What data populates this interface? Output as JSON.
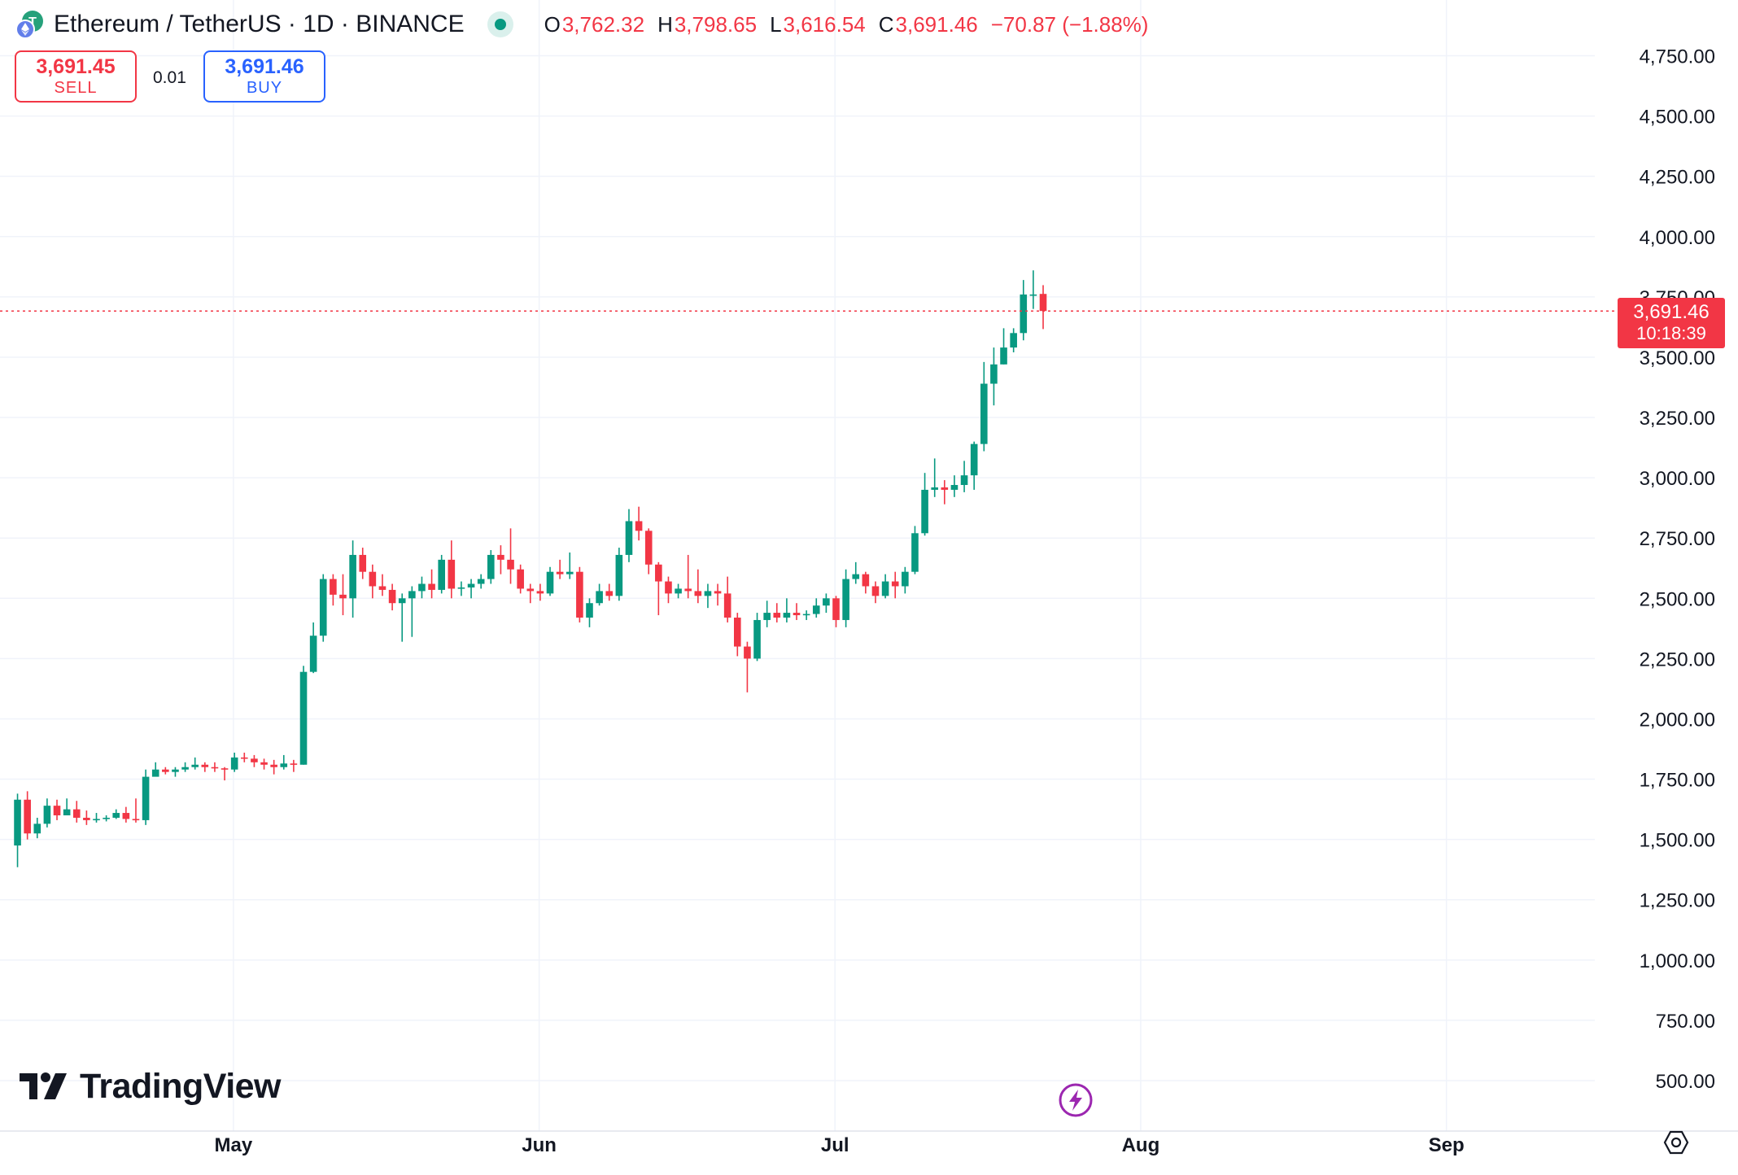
{
  "header": {
    "title": "Ethereum / TetherUS · 1D · BINANCE",
    "ohlc": {
      "o_label": "O",
      "o": "3,762.32",
      "h_label": "H",
      "h": "3,798.65",
      "l_label": "L",
      "l": "3,616.54",
      "c_label": "C",
      "c": "3,691.46",
      "change": "−70.87 (−1.88%)"
    }
  },
  "trade": {
    "sell_price": "3,691.45",
    "sell_label": "SELL",
    "spread": "0.01",
    "buy_price": "3,691.46",
    "buy_label": "BUY"
  },
  "last_price": {
    "price": "3,691.46",
    "countdown": "10:18:39"
  },
  "watermark": "TradingView",
  "colors": {
    "up": "#089981",
    "down": "#f23645",
    "grid": "#f0f3fa",
    "text": "#131722",
    "sell": "#f23645",
    "buy": "#2962ff"
  },
  "icons": {
    "logo": "eth-usdt-logo-icon",
    "live": "live-dot-icon",
    "flash": "lightning-icon",
    "settings": "settings-hex-icon"
  },
  "chart_data": {
    "type": "candlestick",
    "interval": "1D",
    "x_ticks": [
      "May",
      "Jun",
      "Jul",
      "Aug",
      "Sep"
    ],
    "y_ticks": [
      "500.00",
      "750.00",
      "1,000.00",
      "1,250.00",
      "1,500.00",
      "1,750.00",
      "2,000.00",
      "2,250.00",
      "2,500.00",
      "2,750.00",
      "3,000.00",
      "3,250.00",
      "3,500.00",
      "3,750.00",
      "4,000.00",
      "4,250.00",
      "4,500.00",
      "4,750.00"
    ],
    "ylim": [
      310,
      4915
    ],
    "grid": true,
    "last_price": 3691.46,
    "x_start": "2025-04-09",
    "candles": [
      [
        "2025-04-09",
        1475,
        1690,
        1385,
        1665
      ],
      [
        "2025-04-10",
        1665,
        1700,
        1500,
        1525
      ],
      [
        "2025-04-11",
        1525,
        1590,
        1505,
        1565
      ],
      [
        "2025-04-12",
        1565,
        1670,
        1550,
        1640
      ],
      [
        "2025-04-13",
        1640,
        1665,
        1580,
        1600
      ],
      [
        "2025-04-14",
        1600,
        1670,
        1600,
        1625
      ],
      [
        "2025-04-15",
        1625,
        1660,
        1570,
        1590
      ],
      [
        "2025-04-16",
        1590,
        1620,
        1560,
        1580
      ],
      [
        "2025-04-17",
        1580,
        1610,
        1570,
        1585
      ],
      [
        "2025-04-18",
        1585,
        1600,
        1575,
        1590
      ],
      [
        "2025-04-19",
        1590,
        1625,
        1585,
        1610
      ],
      [
        "2025-04-20",
        1610,
        1635,
        1570,
        1585
      ],
      [
        "2025-04-21",
        1585,
        1670,
        1570,
        1580
      ],
      [
        "2025-04-22",
        1580,
        1790,
        1560,
        1760
      ],
      [
        "2025-04-23",
        1760,
        1820,
        1770,
        1790
      ],
      [
        "2025-04-24",
        1790,
        1800,
        1770,
        1780
      ],
      [
        "2025-04-25",
        1780,
        1800,
        1760,
        1790
      ],
      [
        "2025-04-26",
        1790,
        1820,
        1780,
        1800
      ],
      [
        "2025-04-27",
        1800,
        1840,
        1790,
        1810
      ],
      [
        "2025-04-28",
        1810,
        1820,
        1780,
        1800
      ],
      [
        "2025-04-29",
        1800,
        1820,
        1780,
        1795
      ],
      [
        "2025-04-30",
        1795,
        1800,
        1745,
        1790
      ],
      [
        "2025-05-01",
        1790,
        1860,
        1780,
        1840
      ],
      [
        "2025-05-02",
        1840,
        1860,
        1820,
        1835
      ],
      [
        "2025-05-03",
        1835,
        1850,
        1800,
        1820
      ],
      [
        "2025-05-04",
        1820,
        1835,
        1790,
        1810
      ],
      [
        "2025-05-05",
        1810,
        1830,
        1770,
        1800
      ],
      [
        "2025-05-06",
        1800,
        1850,
        1790,
        1815
      ],
      [
        "2025-05-07",
        1815,
        1830,
        1780,
        1810
      ],
      [
        "2025-05-08",
        1810,
        2220,
        1810,
        2195
      ],
      [
        "2025-05-09",
        2195,
        2400,
        2190,
        2345
      ],
      [
        "2025-05-10",
        2345,
        2600,
        2320,
        2580
      ],
      [
        "2025-05-11",
        2580,
        2600,
        2470,
        2515
      ],
      [
        "2025-05-12",
        2515,
        2600,
        2430,
        2500
      ],
      [
        "2025-05-13",
        2500,
        2740,
        2420,
        2680
      ],
      [
        "2025-05-14",
        2680,
        2710,
        2580,
        2610
      ],
      [
        "2025-05-15",
        2610,
        2640,
        2500,
        2550
      ],
      [
        "2025-05-16",
        2550,
        2600,
        2510,
        2535
      ],
      [
        "2025-05-17",
        2535,
        2560,
        2450,
        2480
      ],
      [
        "2025-05-18",
        2480,
        2520,
        2320,
        2500
      ],
      [
        "2025-05-19",
        2500,
        2550,
        2340,
        2530
      ],
      [
        "2025-05-20",
        2530,
        2590,
        2500,
        2560
      ],
      [
        "2025-05-21",
        2560,
        2620,
        2500,
        2535
      ],
      [
        "2025-05-22",
        2535,
        2680,
        2520,
        2660
      ],
      [
        "2025-05-23",
        2660,
        2740,
        2500,
        2540
      ],
      [
        "2025-05-24",
        2540,
        2570,
        2510,
        2545
      ],
      [
        "2025-05-25",
        2545,
        2580,
        2500,
        2560
      ],
      [
        "2025-05-26",
        2560,
        2600,
        2540,
        2580
      ],
      [
        "2025-05-27",
        2580,
        2700,
        2560,
        2680
      ],
      [
        "2025-05-28",
        2680,
        2720,
        2600,
        2660
      ],
      [
        "2025-05-29",
        2660,
        2790,
        2560,
        2620
      ],
      [
        "2025-05-30",
        2620,
        2640,
        2520,
        2540
      ],
      [
        "2025-05-31",
        2540,
        2560,
        2480,
        2530
      ],
      [
        "2025-06-01",
        2530,
        2560,
        2490,
        2520
      ],
      [
        "2025-06-02",
        2520,
        2630,
        2510,
        2610
      ],
      [
        "2025-06-03",
        2610,
        2660,
        2580,
        2600
      ],
      [
        "2025-06-04",
        2600,
        2690,
        2580,
        2610
      ],
      [
        "2025-06-05",
        2610,
        2630,
        2400,
        2420
      ],
      [
        "2025-06-06",
        2420,
        2500,
        2380,
        2480
      ],
      [
        "2025-06-07",
        2480,
        2560,
        2470,
        2530
      ],
      [
        "2025-06-08",
        2530,
        2560,
        2490,
        2510
      ],
      [
        "2025-06-09",
        2510,
        2710,
        2490,
        2680
      ],
      [
        "2025-06-10",
        2680,
        2870,
        2650,
        2820
      ],
      [
        "2025-06-11",
        2820,
        2880,
        2740,
        2780
      ],
      [
        "2025-06-12",
        2780,
        2790,
        2600,
        2640
      ],
      [
        "2025-06-13",
        2640,
        2650,
        2430,
        2570
      ],
      [
        "2025-06-14",
        2570,
        2590,
        2480,
        2520
      ],
      [
        "2025-06-15",
        2520,
        2560,
        2500,
        2540
      ],
      [
        "2025-06-16",
        2540,
        2680,
        2500,
        2530
      ],
      [
        "2025-06-17",
        2530,
        2620,
        2480,
        2510
      ],
      [
        "2025-06-18",
        2510,
        2560,
        2460,
        2530
      ],
      [
        "2025-06-19",
        2530,
        2560,
        2470,
        2520
      ],
      [
        "2025-06-20",
        2520,
        2590,
        2400,
        2420
      ],
      [
        "2025-06-21",
        2420,
        2440,
        2260,
        2300
      ],
      [
        "2025-06-22",
        2300,
        2320,
        2110,
        2250
      ],
      [
        "2025-06-23",
        2250,
        2440,
        2240,
        2410
      ],
      [
        "2025-06-24",
        2410,
        2490,
        2380,
        2440
      ],
      [
        "2025-06-25",
        2440,
        2480,
        2400,
        2420
      ],
      [
        "2025-06-26",
        2420,
        2500,
        2400,
        2440
      ],
      [
        "2025-06-27",
        2440,
        2480,
        2410,
        2430
      ],
      [
        "2025-06-28",
        2430,
        2450,
        2410,
        2435
      ],
      [
        "2025-06-29",
        2435,
        2500,
        2420,
        2470
      ],
      [
        "2025-06-30",
        2470,
        2520,
        2440,
        2500
      ],
      [
        "2025-07-01",
        2500,
        2510,
        2380,
        2410
      ],
      [
        "2025-07-02",
        2410,
        2620,
        2380,
        2580
      ],
      [
        "2025-07-03",
        2580,
        2650,
        2560,
        2600
      ],
      [
        "2025-07-04",
        2600,
        2610,
        2520,
        2550
      ],
      [
        "2025-07-05",
        2550,
        2570,
        2480,
        2510
      ],
      [
        "2025-07-06",
        2510,
        2600,
        2500,
        2570
      ],
      [
        "2025-07-07",
        2570,
        2610,
        2500,
        2550
      ],
      [
        "2025-07-08",
        2550,
        2630,
        2520,
        2610
      ],
      [
        "2025-07-09",
        2610,
        2800,
        2600,
        2770
      ],
      [
        "2025-07-10",
        2770,
        3020,
        2760,
        2950
      ],
      [
        "2025-07-11",
        2950,
        3080,
        2920,
        2960
      ],
      [
        "2025-07-12",
        2960,
        2990,
        2890,
        2950
      ],
      [
        "2025-07-13",
        2950,
        3010,
        2920,
        2970
      ],
      [
        "2025-07-14",
        2970,
        3070,
        2940,
        3010
      ],
      [
        "2025-07-15",
        3010,
        3150,
        2950,
        3140
      ],
      [
        "2025-07-16",
        3140,
        3480,
        3110,
        3390
      ],
      [
        "2025-07-17",
        3390,
        3540,
        3300,
        3470
      ],
      [
        "2025-07-18",
        3470,
        3620,
        3470,
        3540
      ],
      [
        "2025-07-19",
        3540,
        3620,
        3520,
        3600
      ],
      [
        "2025-07-20",
        3600,
        3820,
        3570,
        3760
      ],
      [
        "2025-07-21",
        3760,
        3860,
        3700,
        3760
      ],
      [
        "2025-07-22",
        3762.32,
        3798.65,
        3616.54,
        3691.46
      ]
    ]
  }
}
